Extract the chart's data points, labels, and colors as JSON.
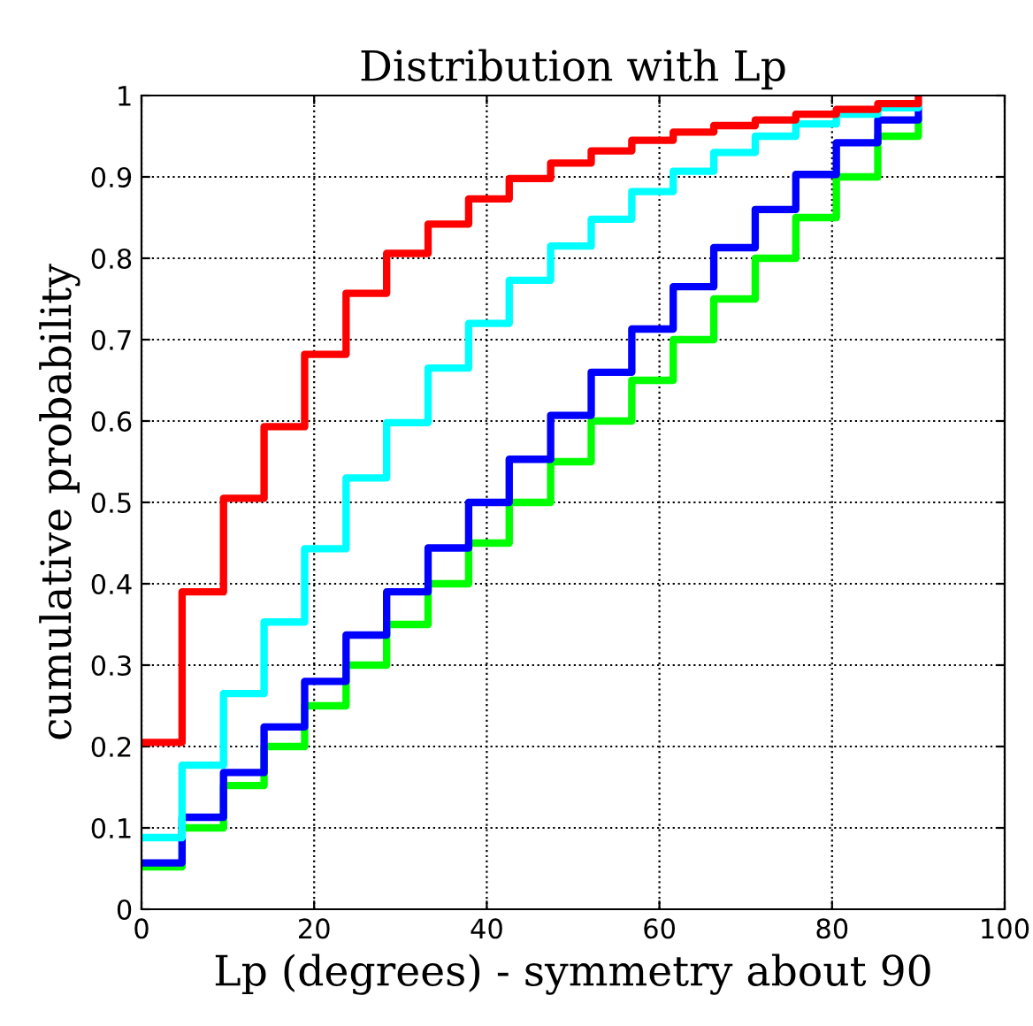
{
  "chart_data": {
    "type": "step",
    "title": "Distribution with Lp",
    "xlabel": "Lp (degrees) - symmetry about 90",
    "ylabel": "cumulative probability",
    "x": [
      0,
      4.7,
      9.5,
      14.2,
      18.9,
      23.7,
      28.4,
      33.2,
      37.9,
      42.6,
      47.4,
      52.1,
      56.8,
      61.6,
      66.3,
      71.1,
      75.8,
      80.5,
      85.3,
      90
    ],
    "series": [
      {
        "color": "#00ff00",
        "values": [
          0.052,
          0.1,
          0.152,
          0.2,
          0.25,
          0.3,
          0.35,
          0.4,
          0.45,
          0.5,
          0.55,
          0.6,
          0.65,
          0.7,
          0.75,
          0.8,
          0.85,
          0.9,
          0.95,
          0.97
        ]
      },
      {
        "color": "#0000ff",
        "values": [
          0.057,
          0.113,
          0.168,
          0.224,
          0.28,
          0.337,
          0.39,
          0.444,
          0.5,
          0.553,
          0.607,
          0.66,
          0.713,
          0.765,
          0.813,
          0.86,
          0.903,
          0.942,
          0.97,
          0.985
        ]
      },
      {
        "color": "#00ffff",
        "values": [
          0.088,
          0.177,
          0.265,
          0.353,
          0.443,
          0.53,
          0.598,
          0.665,
          0.72,
          0.773,
          0.815,
          0.848,
          0.882,
          0.907,
          0.93,
          0.95,
          0.965,
          0.977,
          0.985,
          0.99
        ]
      },
      {
        "color": "#ff0000",
        "values": [
          0.205,
          0.39,
          0.505,
          0.593,
          0.682,
          0.757,
          0.806,
          0.842,
          0.873,
          0.898,
          0.917,
          0.932,
          0.945,
          0.955,
          0.963,
          0.97,
          0.977,
          0.983,
          0.99,
          0.995
        ]
      }
    ],
    "xlim": [
      0,
      100
    ],
    "ylim": [
      0,
      1
    ],
    "xticks": [
      0,
      20,
      40,
      60,
      80,
      100
    ],
    "yticks": [
      0,
      0.1,
      0.2,
      0.3,
      0.4,
      0.5,
      0.6,
      0.7,
      0.8,
      0.9,
      1
    ],
    "grid": true
  }
}
